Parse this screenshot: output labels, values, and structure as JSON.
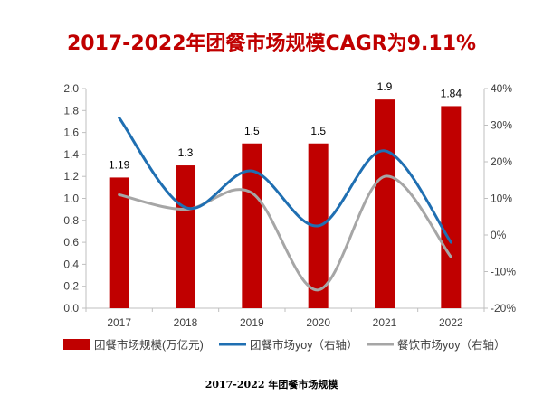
{
  "chart_data": {
    "type": "bar",
    "title": "2017-2022年团餐市场规模CAGR为9.11%",
    "categories": [
      "2017",
      "2018",
      "2019",
      "2020",
      "2021",
      "2022"
    ],
    "series": [
      {
        "name": "团餐市场规模(万亿元)",
        "type": "bar",
        "axis": "left",
        "values": [
          1.19,
          1.3,
          1.5,
          1.5,
          1.9,
          1.84
        ],
        "color": "#c00000"
      },
      {
        "name": "团餐市场yoy（右轴）",
        "type": "line",
        "axis": "right",
        "values": [
          32,
          7.5,
          17.5,
          2.5,
          23,
          -2
        ],
        "color": "#1f6fb2"
      },
      {
        "name": "餐饮市场yoy（右轴）",
        "type": "line",
        "axis": "right",
        "values": [
          11,
          7,
          11.5,
          -15,
          16,
          -6
        ],
        "color": "#a6a6a6"
      }
    ],
    "data_labels": [
      "1.19",
      "1.3",
      "1.5",
      "1.5",
      "1.9",
      "1.84"
    ],
    "y_left": {
      "min": 0,
      "max": 2.0,
      "step": 0.2,
      "ticks": [
        "0.0",
        "0.2",
        "0.4",
        "0.6",
        "0.8",
        "1.0",
        "1.2",
        "1.4",
        "1.6",
        "1.8",
        "2.0"
      ]
    },
    "y_right": {
      "min": -20,
      "max": 40,
      "step": 10,
      "ticks": [
        "-20%",
        "-10%",
        "0%",
        "10%",
        "20%",
        "30%",
        "40%"
      ]
    },
    "grid": false,
    "legend": "bottom"
  },
  "caption": "2017-2022 年团餐市场规模"
}
